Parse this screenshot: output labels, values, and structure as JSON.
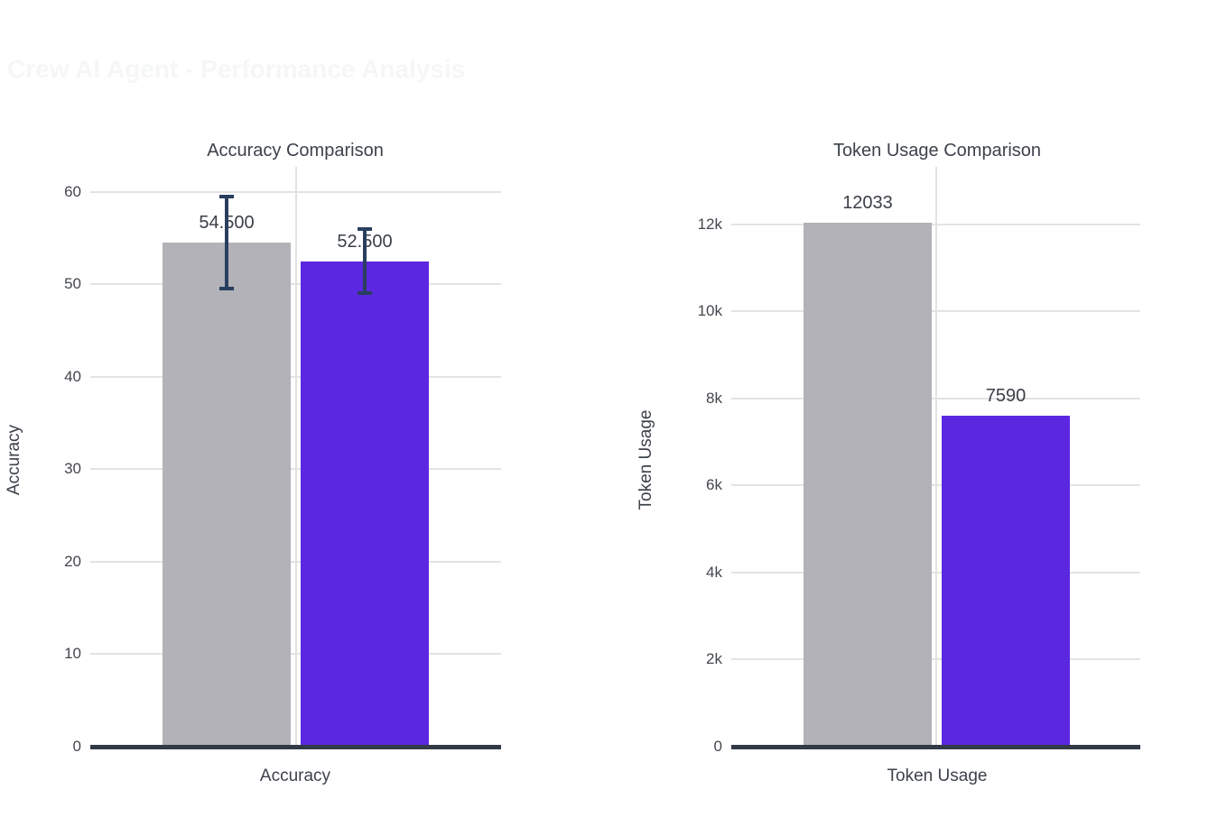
{
  "figure": {
    "title": "Crew AI Agent - Performance Analysis"
  },
  "colors": {
    "background": "#ffffff",
    "figure_title_text": "#f5f6f7",
    "subplot_title_text": "#3d424b",
    "tick_text": "#44474e",
    "value_label_text": "#3a3f47",
    "bar_gray": "#b2b2b8",
    "bar_purple": "#5c27e0",
    "error_bar": "#2a3f5f",
    "axis_line": "#323a46",
    "gridline": "#e3e3e3"
  },
  "chart_data": [
    {
      "type": "bar",
      "title": "Accuracy Comparison",
      "xlabel": "Accuracy",
      "ylabel": "Accuracy",
      "categories": [
        "Accuracy"
      ],
      "ylim": [
        0,
        62.7
      ],
      "grid": true,
      "legend": false,
      "yticks": [
        {
          "v": 0,
          "label": "0"
        },
        {
          "v": 10,
          "label": "10"
        },
        {
          "v": 20,
          "label": "20"
        },
        {
          "v": 30,
          "label": "30"
        },
        {
          "v": 40,
          "label": "40"
        },
        {
          "v": 50,
          "label": "50"
        },
        {
          "v": 60,
          "label": "60"
        }
      ],
      "series": [
        {
          "value": 54.5,
          "label": "54.500",
          "error": 5.0,
          "color_key": "bar_gray"
        },
        {
          "value": 52.5,
          "label": "52.500",
          "error": 3.5,
          "color_key": "bar_purple"
        }
      ]
    },
    {
      "type": "bar",
      "title": "Token Usage Comparison",
      "xlabel": "Token Usage",
      "ylabel": "Token Usage",
      "categories": [
        "Token Usage"
      ],
      "ylim": [
        0,
        13315
      ],
      "grid": true,
      "legend": false,
      "yticks": [
        {
          "v": 0,
          "label": "0"
        },
        {
          "v": 2000,
          "label": "2k"
        },
        {
          "v": 4000,
          "label": "4k"
        },
        {
          "v": 6000,
          "label": "6k"
        },
        {
          "v": 8000,
          "label": "8k"
        },
        {
          "v": 10000,
          "label": "10k"
        },
        {
          "v": 12000,
          "label": "12k"
        }
      ],
      "series": [
        {
          "value": 12033,
          "label": "12033",
          "error": null,
          "color_key": "bar_gray"
        },
        {
          "value": 7590,
          "label": "7590",
          "error": null,
          "color_key": "bar_purple"
        }
      ]
    }
  ]
}
